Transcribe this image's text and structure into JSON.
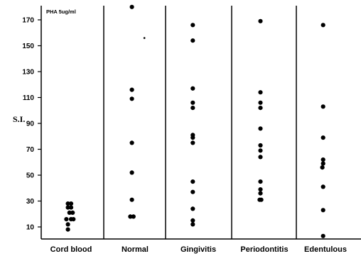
{
  "chart_data": {
    "type": "scatter",
    "annotation": "PHA 5ug/ml",
    "ylabel": "S.I.",
    "ylim": [
      0,
      180
    ],
    "yticks": [
      10,
      30,
      50,
      70,
      90,
      110,
      130,
      150,
      170
    ],
    "categories": [
      "Cord blood",
      "Normal",
      "Gingivitis",
      "Periodontitis",
      "Edentulous"
    ],
    "groups": [
      {
        "category": "Cord blood",
        "points": [
          {
            "x": -0.2,
            "y": 28
          },
          {
            "x": 0.0,
            "y": 28
          },
          {
            "x": -0.2,
            "y": 25
          },
          {
            "x": 0.0,
            "y": 25
          },
          {
            "x": -0.1,
            "y": 21
          },
          {
            "x": 0.1,
            "y": 21
          },
          {
            "x": -0.3,
            "y": 16
          },
          {
            "x": 0.0,
            "y": 16
          },
          {
            "x": 0.15,
            "y": 16
          },
          {
            "x": -0.2,
            "y": 12
          },
          {
            "x": -0.2,
            "y": 8
          }
        ]
      },
      {
        "category": "Normal",
        "points": [
          {
            "x": -0.2,
            "y": 180
          },
          {
            "x": 0.6,
            "y": 156,
            "size": "small"
          },
          {
            "x": -0.2,
            "y": 116
          },
          {
            "x": -0.2,
            "y": 109
          },
          {
            "x": -0.2,
            "y": 75
          },
          {
            "x": -0.2,
            "y": 52
          },
          {
            "x": -0.2,
            "y": 31
          },
          {
            "x": -0.3,
            "y": 18
          },
          {
            "x": -0.1,
            "y": 18
          }
        ]
      },
      {
        "category": "Gingivitis",
        "points": [
          {
            "x": -0.35,
            "y": 166
          },
          {
            "x": -0.35,
            "y": 154
          },
          {
            "x": -0.35,
            "y": 117
          },
          {
            "x": -0.35,
            "y": 106
          },
          {
            "x": -0.35,
            "y": 102
          },
          {
            "x": -0.35,
            "y": 81
          },
          {
            "x": -0.35,
            "y": 79
          },
          {
            "x": -0.35,
            "y": 75
          },
          {
            "x": -0.35,
            "y": 45
          },
          {
            "x": -0.35,
            "y": 37
          },
          {
            "x": -0.35,
            "y": 24
          },
          {
            "x": -0.35,
            "y": 15
          },
          {
            "x": -0.35,
            "y": 12
          }
        ]
      },
      {
        "category": "Periodontitis",
        "points": [
          {
            "x": -0.25,
            "y": 169
          },
          {
            "x": -0.25,
            "y": 114
          },
          {
            "x": -0.25,
            "y": 106
          },
          {
            "x": -0.25,
            "y": 102
          },
          {
            "x": -0.25,
            "y": 86
          },
          {
            "x": -0.25,
            "y": 73
          },
          {
            "x": -0.25,
            "y": 69
          },
          {
            "x": -0.25,
            "y": 64
          },
          {
            "x": -0.25,
            "y": 45
          },
          {
            "x": -0.25,
            "y": 39
          },
          {
            "x": -0.25,
            "y": 36
          },
          {
            "x": -0.3,
            "y": 31
          },
          {
            "x": -0.2,
            "y": 31
          }
        ]
      },
      {
        "category": "Edentulous",
        "points": [
          {
            "x": -0.15,
            "y": 166
          },
          {
            "x": -0.15,
            "y": 103
          },
          {
            "x": -0.15,
            "y": 79
          },
          {
            "x": -0.15,
            "y": 62
          },
          {
            "x": -0.15,
            "y": 59
          },
          {
            "x": -0.2,
            "y": 56
          },
          {
            "x": -0.15,
            "y": 41
          },
          {
            "x": -0.15,
            "y": 23
          },
          {
            "x": -0.15,
            "y": 3
          }
        ]
      }
    ]
  }
}
